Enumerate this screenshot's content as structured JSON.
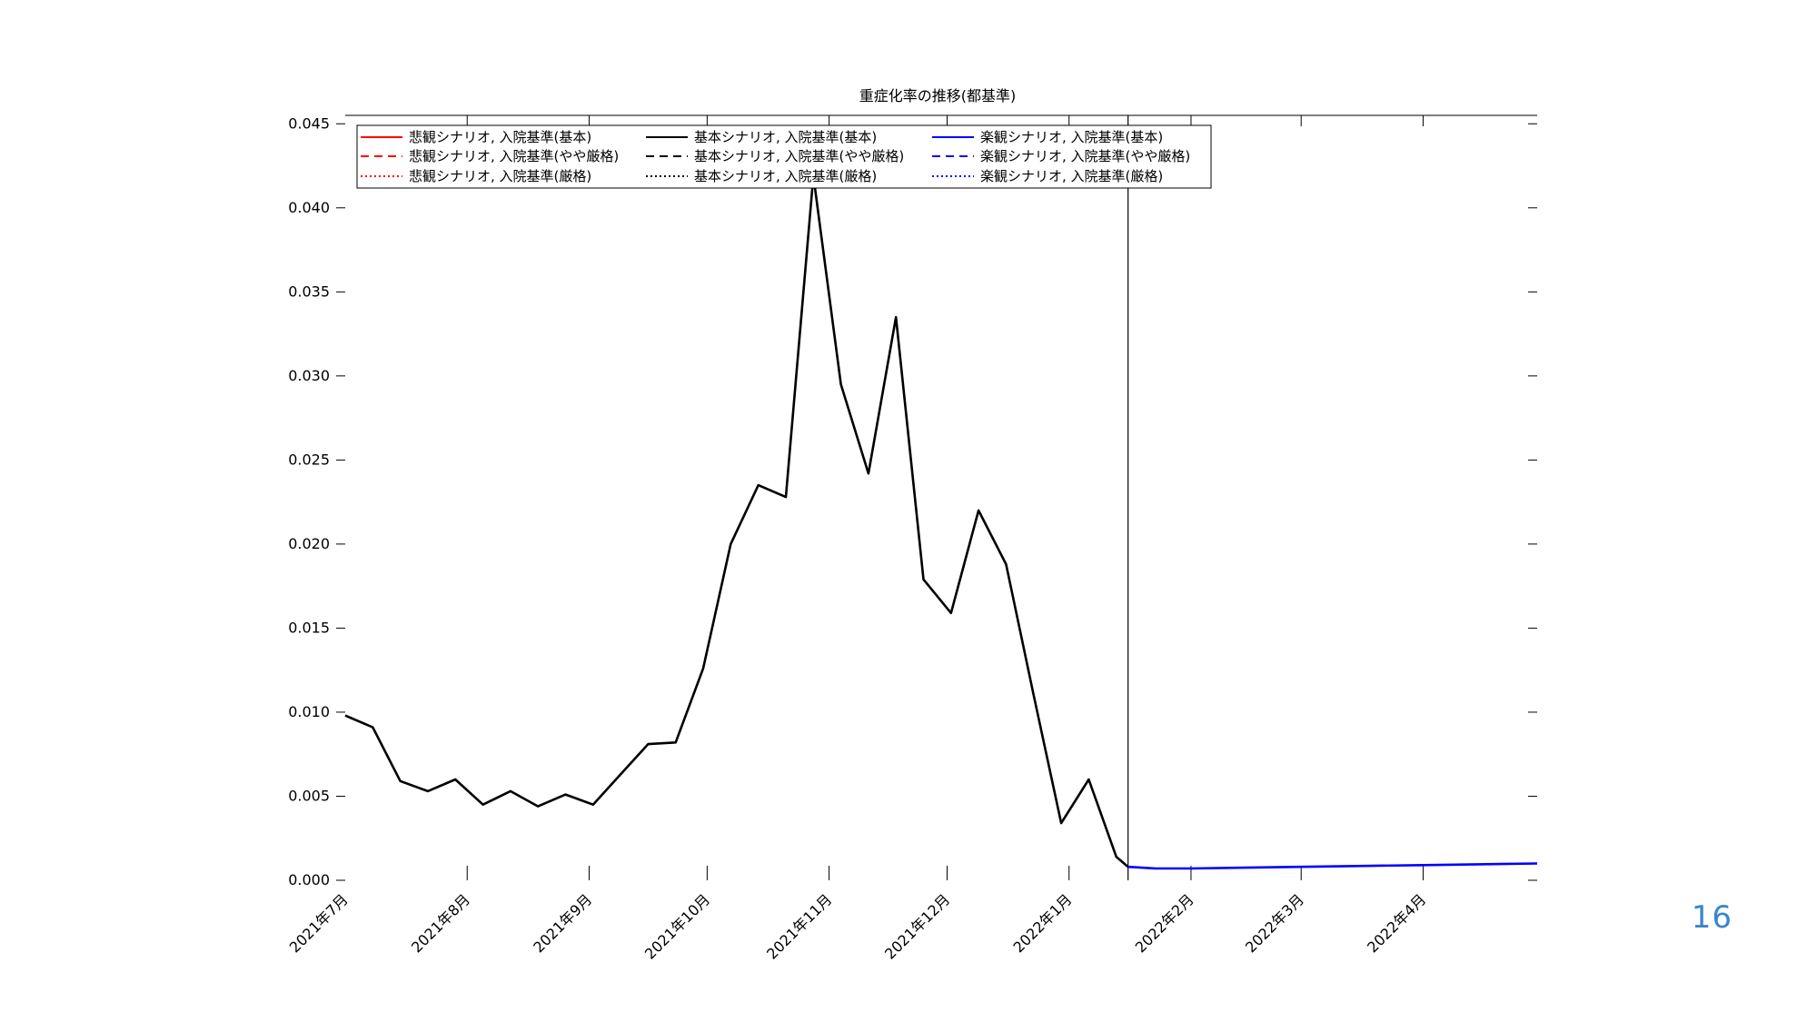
{
  "page_number": "16",
  "chart_data": {
    "type": "line",
    "title": "重症化率の推移(都基準)",
    "xlabel": "",
    "ylabel": "",
    "ylim": [
      0,
      0.0455
    ],
    "grid": false,
    "legend_position": "top-left",
    "y_ticks": [
      "0.000",
      "0.005",
      "0.010",
      "0.015",
      "0.020",
      "0.025",
      "0.030",
      "0.035",
      "0.040",
      "0.045"
    ],
    "x_ticks": [
      "2021年7月",
      "2021年8月",
      "2021年9月",
      "2021年10月",
      "2021年11月",
      "2021年12月",
      "2022年1月",
      "2022年2月",
      "2022年3月",
      "2022年4月"
    ],
    "x_tick_dates": [
      "2021-07-01",
      "2021-08-01",
      "2021-09-01",
      "2021-10-01",
      "2021-11-01",
      "2021-12-01",
      "2022-01-01",
      "2022-02-01",
      "2022-03-01",
      "2022-04-01"
    ],
    "x_range": [
      "2021-07-01",
      "2022-04-30"
    ],
    "forecast_start": "2022-01-16",
    "legend": [
      {
        "label": "悲観シナリオ, 入院基準(基本)",
        "color": "#ff0000",
        "dash": "solid"
      },
      {
        "label": "基本シナリオ, 入院基準(基本)",
        "color": "#000000",
        "dash": "solid"
      },
      {
        "label": "楽観シナリオ, 入院基準(基本)",
        "color": "#0000ff",
        "dash": "solid"
      },
      {
        "label": "悲観シナリオ, 入院基準(やや厳格)",
        "color": "#ff0000",
        "dash": "dashed"
      },
      {
        "label": "基本シナリオ, 入院基準(やや厳格)",
        "color": "#000000",
        "dash": "dashed"
      },
      {
        "label": "楽観シナリオ, 入院基準(やや厳格)",
        "color": "#0000ff",
        "dash": "dashed"
      },
      {
        "label": "悲観シナリオ, 入院基準(厳格)",
        "color": "#ff0000",
        "dash": "dotted"
      },
      {
        "label": "基本シナリオ, 入院基準(厳格)",
        "color": "#000000",
        "dash": "dotted"
      },
      {
        "label": "楽観シナリオ, 入院基準(厳格)",
        "color": "#0000ff",
        "dash": "dotted"
      }
    ],
    "series": [
      {
        "name": "基本シナリオ, 入院基準(基本)",
        "color": "#000000",
        "x": [
          "2021-07-01",
          "2021-07-08",
          "2021-07-15",
          "2021-07-22",
          "2021-07-29",
          "2021-08-05",
          "2021-08-12",
          "2021-08-19",
          "2021-08-26",
          "2021-09-02",
          "2021-09-09",
          "2021-09-16",
          "2021-09-23",
          "2021-09-30",
          "2021-10-07",
          "2021-10-14",
          "2021-10-21",
          "2021-10-28",
          "2021-11-04",
          "2021-11-11",
          "2021-11-18",
          "2021-11-25",
          "2021-12-02",
          "2021-12-09",
          "2021-12-16",
          "2021-12-23",
          "2021-12-30",
          "2022-01-06",
          "2022-01-13",
          "2022-01-16"
        ],
        "values": [
          0.0098,
          0.0091,
          0.0059,
          0.0053,
          0.006,
          0.0045,
          0.0053,
          0.0044,
          0.0051,
          0.0045,
          0.0063,
          0.0081,
          0.0082,
          0.0126,
          0.02,
          0.0235,
          0.0228,
          0.0419,
          0.0295,
          0.0242,
          0.0335,
          0.0179,
          0.0159,
          0.022,
          0.0188,
          0.011,
          0.0034,
          0.006,
          0.0014,
          0.0008
        ]
      },
      {
        "name": "楽観シナリオ, 入院基準(基本)",
        "color": "#0000ff",
        "x": [
          "2022-01-16",
          "2022-01-23",
          "2022-02-01",
          "2022-02-15",
          "2022-03-01",
          "2022-03-15",
          "2022-04-01",
          "2022-04-15",
          "2022-04-30"
        ],
        "values": [
          0.0008,
          0.0007,
          0.0007,
          0.00075,
          0.0008,
          0.00085,
          0.0009,
          0.00095,
          0.001
        ]
      }
    ]
  }
}
